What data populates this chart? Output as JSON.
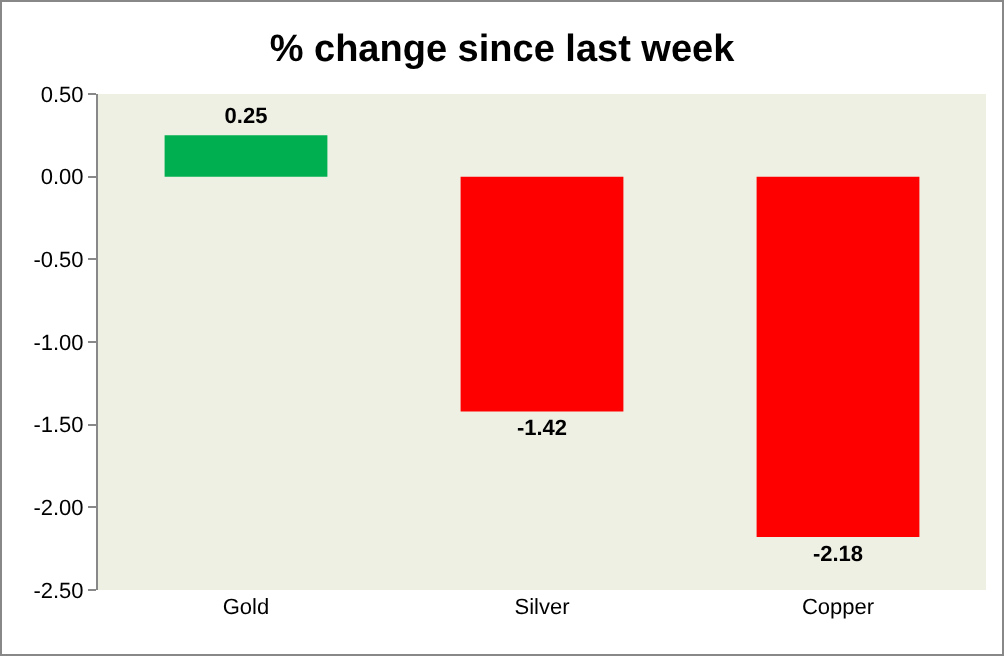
{
  "chart_data": {
    "type": "bar",
    "title": "% change since last week",
    "categories": [
      "Gold",
      "Silver",
      "Copper"
    ],
    "values": [
      0.25,
      -1.42,
      -2.18
    ],
    "colors": [
      "#00b050",
      "#ff0000",
      "#ff0000"
    ],
    "value_labels": [
      "0.25",
      "-1.42",
      "-2.18"
    ],
    "ylim": [
      -2.5,
      0.5
    ],
    "yticks": [
      {
        "value": 0.5,
        "label": "0.50"
      },
      {
        "value": 0,
        "label": "0.00"
      },
      {
        "value": -0.5,
        "label": "-0.50"
      },
      {
        "value": -1,
        "label": "-1.00"
      },
      {
        "value": -1.5,
        "label": "-1.50"
      },
      {
        "value": -2,
        "label": "-2.00"
      },
      {
        "value": -2.5,
        "label": "-2.50"
      }
    ],
    "grid": false
  }
}
